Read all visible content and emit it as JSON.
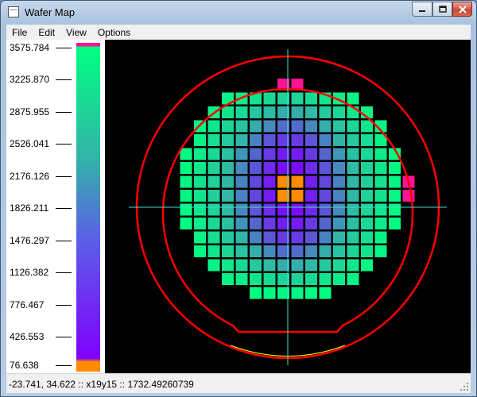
{
  "window": {
    "title": "Wafer Map",
    "controls": [
      "minimize",
      "maximize",
      "close"
    ]
  },
  "menu": {
    "items": [
      "File",
      "Edit",
      "View",
      "Options"
    ]
  },
  "legend": {
    "ticks": [
      "3575.784",
      "3225.870",
      "2875.955",
      "2526.041",
      "2176.126",
      "1826.211",
      "1476.297",
      "1126.382",
      "776.467",
      "426.553",
      "76.638"
    ],
    "colors": {
      "max": "#ff1493",
      "high": "#00ff80",
      "mid": "#32b4a8",
      "low": "#8000ff",
      "min": "#ff8c00"
    }
  },
  "wafer_map": {
    "die_rows": [
      {
        "columns": [
          8,
          9
        ],
        "tones": [
          "max",
          "max"
        ]
      },
      {
        "columns": [
          4,
          5,
          6,
          7,
          8,
          9,
          10,
          11,
          12,
          13
        ],
        "tones": [
          0.08,
          0.12,
          0.18,
          0.24,
          0.3,
          0.3,
          0.24,
          0.18,
          0.12,
          0.08
        ]
      },
      {
        "columns": [
          3,
          4,
          5,
          6,
          7,
          8,
          9,
          10,
          11,
          12,
          13,
          14
        ],
        "tones": [
          0.06,
          0.16,
          0.26,
          0.36,
          0.46,
          0.52,
          0.52,
          0.46,
          0.36,
          0.26,
          0.16,
          0.06
        ]
      },
      {
        "columns": [
          2,
          3,
          4,
          5,
          6,
          7,
          8,
          9,
          10,
          11,
          12,
          13,
          14,
          15
        ],
        "tones": [
          0.06,
          0.16,
          0.28,
          0.4,
          0.52,
          0.62,
          0.7,
          0.7,
          0.62,
          0.52,
          0.4,
          0.28,
          0.16,
          0.06
        ]
      },
      {
        "columns": [
          2,
          3,
          4,
          5,
          6,
          7,
          8,
          9,
          10,
          11,
          12,
          13,
          14,
          15
        ],
        "tones": [
          0.08,
          0.22,
          0.36,
          0.5,
          0.64,
          0.76,
          0.84,
          0.84,
          0.76,
          0.64,
          0.5,
          0.36,
          0.22,
          0.08
        ]
      },
      {
        "columns": [
          1,
          2,
          3,
          4,
          5,
          6,
          7,
          8,
          9,
          10,
          11,
          12,
          13,
          14,
          15,
          16
        ],
        "tones": [
          0.02,
          0.12,
          0.26,
          0.42,
          0.58,
          0.72,
          0.84,
          0.92,
          0.92,
          0.84,
          0.72,
          0.58,
          0.42,
          0.26,
          0.12,
          0.02
        ]
      },
      {
        "columns": [
          1,
          2,
          3,
          4,
          5,
          6,
          7,
          8,
          9,
          10,
          11,
          12,
          13,
          14,
          15,
          16
        ],
        "tones": [
          0.04,
          0.16,
          0.3,
          0.46,
          0.62,
          0.76,
          0.88,
          0.96,
          0.96,
          0.88,
          0.76,
          0.62,
          0.46,
          0.3,
          0.16,
          0.04
        ]
      },
      {
        "columns": [
          1,
          2,
          3,
          4,
          5,
          6,
          7,
          8,
          9,
          10,
          11,
          12,
          13,
          14,
          15,
          16,
          17
        ],
        "tones": [
          0.06,
          0.18,
          0.32,
          0.48,
          0.64,
          0.8,
          0.92,
          "min",
          "min",
          0.92,
          0.8,
          0.64,
          0.48,
          0.32,
          0.18,
          0.06,
          "max"
        ]
      },
      {
        "columns": [
          1,
          2,
          3,
          4,
          5,
          6,
          7,
          8,
          9,
          10,
          11,
          12,
          13,
          14,
          15,
          16,
          17
        ],
        "tones": [
          0.06,
          0.18,
          0.32,
          0.48,
          0.64,
          0.8,
          0.92,
          "min",
          "min",
          0.92,
          0.8,
          0.64,
          0.48,
          0.32,
          0.18,
          0.06,
          "max"
        ]
      },
      {
        "columns": [
          1,
          2,
          3,
          4,
          5,
          6,
          7,
          8,
          9,
          10,
          11,
          12,
          13,
          14,
          15,
          16
        ],
        "tones": [
          0.04,
          0.16,
          0.3,
          0.46,
          0.62,
          0.76,
          0.88,
          0.96,
          0.96,
          0.88,
          0.76,
          0.62,
          0.46,
          0.3,
          0.16,
          0.04
        ]
      },
      {
        "columns": [
          1,
          2,
          3,
          4,
          5,
          6,
          7,
          8,
          9,
          10,
          11,
          12,
          13,
          14,
          15,
          16
        ],
        "tones": [
          0.02,
          0.12,
          0.26,
          0.42,
          0.58,
          0.72,
          0.84,
          0.92,
          0.92,
          0.84,
          0.72,
          0.58,
          0.42,
          0.26,
          0.12,
          0.02
        ]
      },
      {
        "columns": [
          2,
          3,
          4,
          5,
          6,
          7,
          8,
          9,
          10,
          11,
          12,
          13,
          14,
          15
        ],
        "tones": [
          0.08,
          0.22,
          0.36,
          0.5,
          0.64,
          0.76,
          0.84,
          0.84,
          0.76,
          0.64,
          0.5,
          0.36,
          0.22,
          0.08
        ]
      },
      {
        "columns": [
          2,
          3,
          4,
          5,
          6,
          7,
          8,
          9,
          10,
          11,
          12,
          13,
          14,
          15
        ],
        "tones": [
          0.06,
          0.16,
          0.28,
          0.4,
          0.52,
          0.62,
          0.7,
          0.7,
          0.62,
          0.52,
          0.4,
          0.28,
          0.16,
          0.06
        ]
      },
      {
        "columns": [
          3,
          4,
          5,
          6,
          7,
          8,
          9,
          10,
          11,
          12,
          13,
          14
        ],
        "tones": [
          0.06,
          0.16,
          0.26,
          0.36,
          0.46,
          0.52,
          0.52,
          0.46,
          0.36,
          0.26,
          0.16,
          0.06
        ]
      },
      {
        "columns": [
          4,
          5,
          6,
          7,
          8,
          9,
          10,
          11,
          12,
          13
        ],
        "tones": [
          0.08,
          0.12,
          0.18,
          0.24,
          0.3,
          0.3,
          0.24,
          0.18,
          0.12,
          0.08
        ]
      },
      {
        "columns": [
          6,
          7,
          8,
          9,
          10,
          11
        ],
        "tones": [
          0.02,
          0.04,
          0.06,
          0.06,
          0.04,
          0.02
        ]
      }
    ],
    "colors": {
      "outline": "#ff0000",
      "crosshair": "#40e0d0",
      "notch": "#ffff00"
    }
  },
  "status": {
    "text": "-23.741, 34.622 :: x19y15 :: 1732.49260739"
  }
}
